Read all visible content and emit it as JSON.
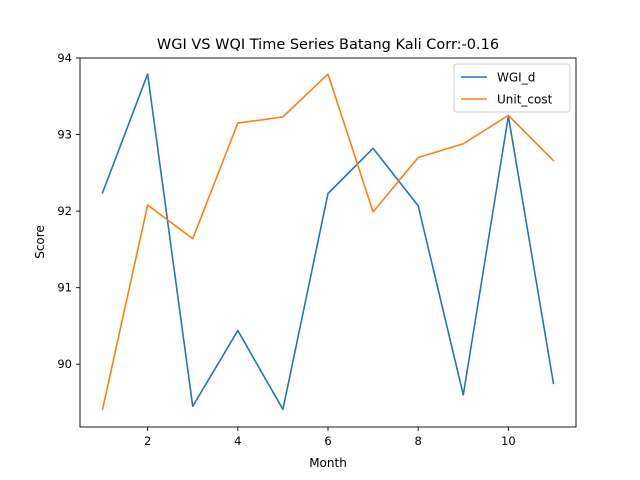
{
  "chart_data": {
    "type": "line",
    "title": "WGI VS WQI Time Series Batang Kali Corr:-0.16",
    "xlabel": "Month",
    "ylabel": "Score",
    "x": [
      1,
      2,
      3,
      4,
      5,
      6,
      7,
      8,
      9,
      10,
      11
    ],
    "xlim": [
      0.5,
      11.5
    ],
    "ylim": [
      89.18,
      94.0
    ],
    "xticks": [
      2,
      4,
      6,
      8,
      10
    ],
    "yticks": [
      90,
      91,
      92,
      93,
      94
    ],
    "grid": false,
    "legend_position": "top-right",
    "series": [
      {
        "name": "WGI_d",
        "color": "#1f77b4",
        "values": [
          92.24,
          93.79,
          89.45,
          90.44,
          89.41,
          92.23,
          92.82,
          92.07,
          89.6,
          93.24,
          89.75
        ]
      },
      {
        "name": "Unit_cost",
        "color": "#ff7f0e",
        "values": [
          89.41,
          92.08,
          91.64,
          93.15,
          93.23,
          93.79,
          91.99,
          92.7,
          92.88,
          93.25,
          92.66
        ]
      }
    ]
  }
}
